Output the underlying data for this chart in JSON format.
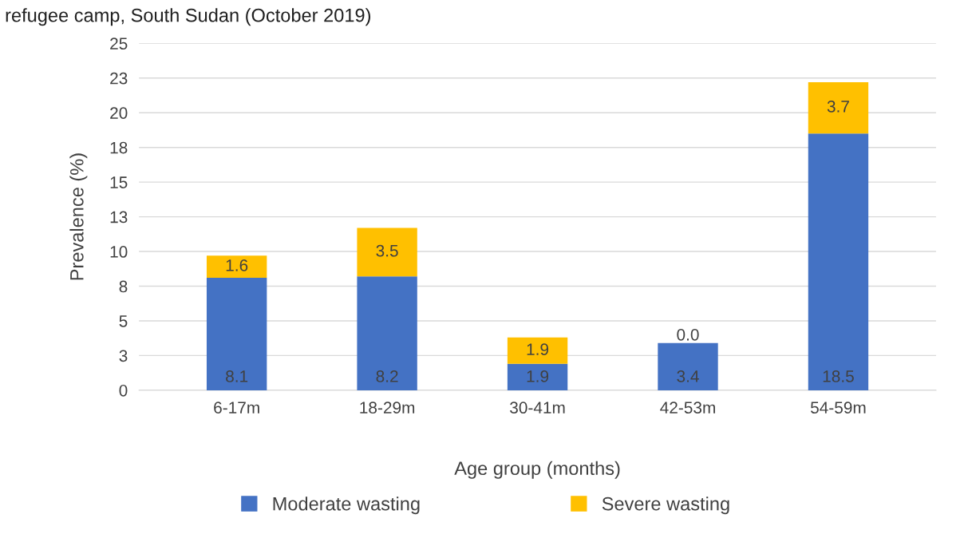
{
  "chart_data": {
    "type": "bar",
    "title": "refugee camp, South Sudan (October 2019)",
    "xlabel": "Age group (months)",
    "ylabel": "Prevalence (%)",
    "categories": [
      "6-17m",
      "18-29m",
      "30-41m",
      "42-53m",
      "54-59m"
    ],
    "stacked": true,
    "series": [
      {
        "name": "Moderate wasting",
        "color": "#4472c4",
        "values": [
          8.1,
          8.2,
          1.9,
          3.4,
          18.5
        ],
        "value_labels": [
          "8.1",
          "8.2",
          "1.9",
          "3.4",
          "18.5"
        ]
      },
      {
        "name": "Severe wasting",
        "color": "#ffc000",
        "values": [
          1.6,
          3.5,
          1.9,
          0.0,
          3.7
        ],
        "value_labels": [
          "1.6",
          "3.5",
          "1.9",
          "0.0",
          "3.7"
        ]
      }
    ],
    "ylim": [
      0,
      25
    ],
    "yticks": [
      0,
      {
        "value": 2.5,
        "label": "3"
      },
      5,
      {
        "value": 7.5,
        "label": "8"
      },
      10,
      {
        "value": 12.5,
        "label": "13"
      },
      15,
      {
        "value": 17.5,
        "label": "18"
      },
      20,
      {
        "value": 22.5,
        "label": "23"
      },
      25
    ],
    "grid": "y",
    "legend": "bottom"
  }
}
